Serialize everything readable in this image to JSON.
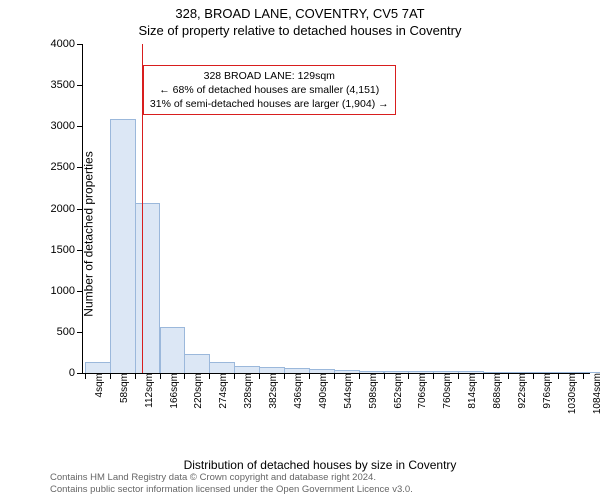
{
  "title": "328, BROAD LANE, COVENTRY, CV5 7AT",
  "subtitle": "Size of property relative to detached houses in Coventry",
  "ylabel": "Number of detached properties",
  "xlabel": "Distribution of detached houses by size in Coventry",
  "chart": {
    "type": "histogram",
    "background_color": "#ffffff",
    "axis_color": "#000000",
    "bar_fill": "#dce7f5",
    "bar_stroke": "#9bb8db",
    "marker_color": "#d81e1e",
    "annotation_border": "#d81e1e",
    "ylim": [
      0,
      4000
    ],
    "ytick_step": 500,
    "yticks": [
      0,
      500,
      1000,
      1500,
      2000,
      2500,
      3000,
      3500,
      4000
    ],
    "xlim": [
      0,
      1100
    ],
    "xticks": [
      4,
      58,
      112,
      166,
      220,
      274,
      328,
      382,
      436,
      490,
      544,
      598,
      652,
      706,
      760,
      814,
      868,
      922,
      976,
      1030,
      1084
    ],
    "xtick_suffix": "sqm",
    "bar_width_sqm": 54,
    "bars": [
      {
        "x": 4,
        "y": 120
      },
      {
        "x": 58,
        "y": 3080
      },
      {
        "x": 112,
        "y": 2050
      },
      {
        "x": 166,
        "y": 550
      },
      {
        "x": 220,
        "y": 220
      },
      {
        "x": 274,
        "y": 120
      },
      {
        "x": 328,
        "y": 70
      },
      {
        "x": 382,
        "y": 60
      },
      {
        "x": 436,
        "y": 50
      },
      {
        "x": 490,
        "y": 40
      },
      {
        "x": 544,
        "y": 20
      },
      {
        "x": 598,
        "y": 15
      },
      {
        "x": 652,
        "y": 10
      },
      {
        "x": 706,
        "y": 10
      },
      {
        "x": 760,
        "y": 8
      },
      {
        "x": 814,
        "y": 8
      },
      {
        "x": 868,
        "y": 6
      },
      {
        "x": 922,
        "y": 5
      },
      {
        "x": 976,
        "y": 5
      },
      {
        "x": 1030,
        "y": 4
      },
      {
        "x": 1084,
        "y": 4
      }
    ],
    "marker_x": 129,
    "label_fontsize": 12,
    "tick_fontsize": 11,
    "annotation_fontsize": 10.5
  },
  "annotation": {
    "line1": "328 BROAD LANE: 129sqm",
    "line2": "← 68% of detached houses are smaller (4,151)",
    "line3": "31% of semi-detached houses are larger (1,904) →"
  },
  "attribution": {
    "line1": "Contains HM Land Registry data © Crown copyright and database right 2024.",
    "line2": "Contains public sector information licensed under the Open Government Licence v3.0."
  }
}
